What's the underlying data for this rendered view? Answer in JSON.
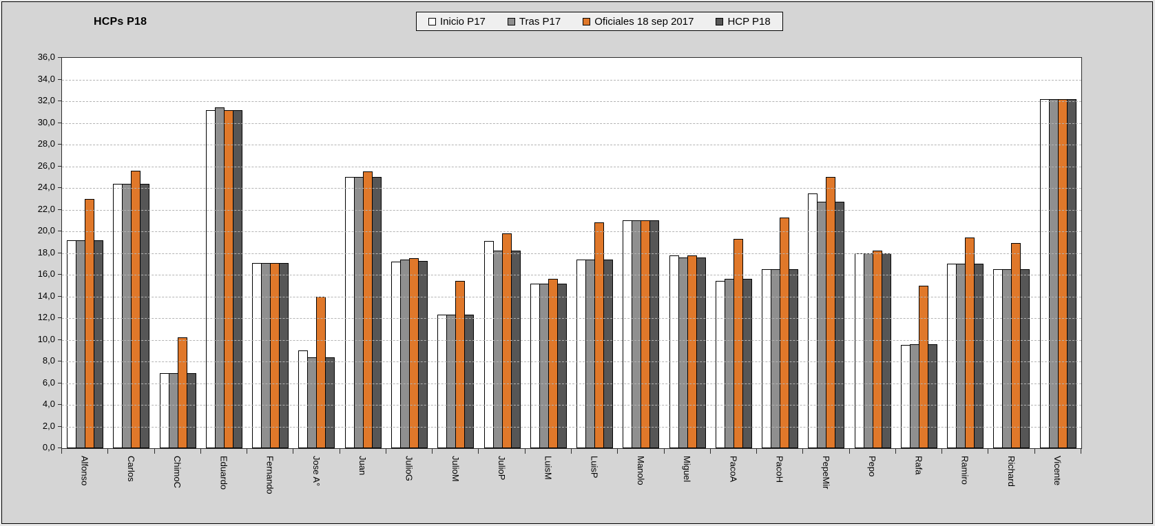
{
  "title": "HCPs P18",
  "colors": {
    "chart_background": "#d5d5d5",
    "plot_background": "#ffffff",
    "legend_background": "#efefef",
    "gridline": "#b3b3b3",
    "series_inicio": "#ffffff",
    "series_tras": "#8f8f8f",
    "series_oficiales": "#e0782a",
    "series_hcp": "#565656"
  },
  "chart_data": {
    "type": "bar",
    "title": "HCPs P18",
    "xlabel": "",
    "ylabel": "",
    "ylim": [
      0,
      36
    ],
    "ytick_step": 2,
    "ytick_labels": [
      "36,0",
      "34,0",
      "32,0",
      "30,0",
      "28,0",
      "26,0",
      "24,0",
      "22,0",
      "20,0",
      "18,0",
      "16,0",
      "14,0",
      "12,0",
      "10,0",
      "8,0",
      "6,0",
      "4,0",
      "2,0",
      "0,0"
    ],
    "grid": "horizontal-dashed",
    "legend_position": "top-center",
    "categories": [
      "Alfonso",
      "Carlos",
      "ChimoC",
      "Eduardo",
      "Fernando",
      "Jose A°",
      "Juan",
      "JulioG",
      "JulioM",
      "JulioP",
      "LuisM",
      "LuisP",
      "Manolo",
      "Miguel",
      "PacoA",
      "PacoH",
      "PepeMir",
      "Pepo",
      "Rafa",
      "Ramiro",
      "Richard",
      "Vicente"
    ],
    "series": [
      {
        "name": "Inicio P17",
        "color": "#ffffff",
        "values": [
          19.2,
          24.4,
          6.9,
          31.2,
          17.1,
          9.0,
          25.0,
          17.2,
          12.3,
          19.1,
          15.2,
          17.4,
          21.0,
          17.8,
          15.4,
          16.5,
          23.5,
          18.0,
          9.5,
          17.0,
          16.5,
          32.2
        ]
      },
      {
        "name": "Tras P17",
        "color": "#8f8f8f",
        "values": [
          19.2,
          24.4,
          6.9,
          31.4,
          17.1,
          8.4,
          25.0,
          17.4,
          12.3,
          18.2,
          15.2,
          17.4,
          21.0,
          17.6,
          15.6,
          16.5,
          22.7,
          18.0,
          9.6,
          17.0,
          16.5,
          32.2
        ]
      },
      {
        "name": "Oficiales 18 sep 2017",
        "color": "#e0782a",
        "values": [
          23.0,
          25.6,
          10.2,
          31.2,
          17.1,
          14.0,
          25.5,
          17.5,
          15.4,
          19.8,
          15.6,
          20.8,
          21.0,
          17.8,
          19.3,
          21.3,
          25.0,
          18.2,
          15.0,
          19.4,
          18.9,
          32.2
        ]
      },
      {
        "name": "HCP P18",
        "color": "#565656",
        "values": [
          19.2,
          24.4,
          6.9,
          31.2,
          17.1,
          8.4,
          25.0,
          17.3,
          12.3,
          18.2,
          15.2,
          17.4,
          21.0,
          17.6,
          15.6,
          16.5,
          22.7,
          18.0,
          9.6,
          17.0,
          16.5,
          32.2
        ]
      }
    ]
  }
}
